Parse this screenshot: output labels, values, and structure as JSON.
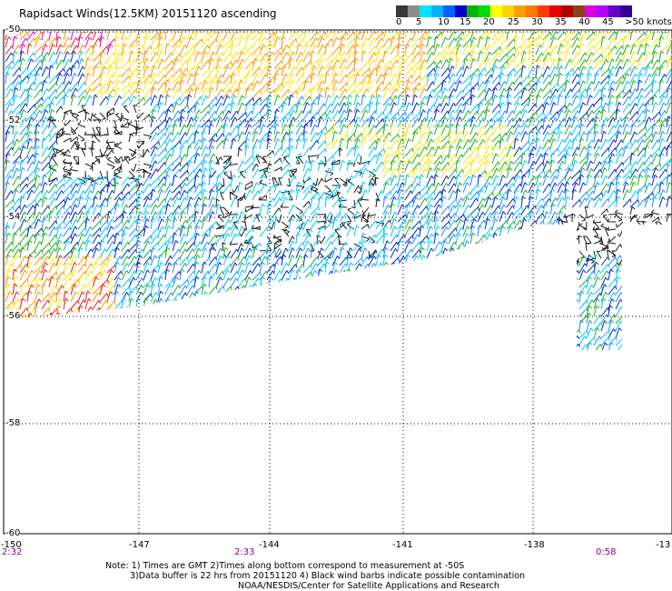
{
  "title": "Rapidsact Winds(12.5KM) 20151120 ascending",
  "legend": {
    "unit_label": ">50 knots",
    "ticks": [
      "0",
      "5",
      "10",
      "15",
      "20",
      "25",
      "30",
      "35",
      "40",
      "45"
    ],
    "swatches": [
      {
        "name": "0-5",
        "colors": [
          "#3a3a3a",
          "#8c8c8c"
        ]
      },
      {
        "name": "5-10",
        "colors": [
          "#00e5ff",
          "#00b4ff"
        ]
      },
      {
        "name": "10-15",
        "colors": [
          "#0064ff",
          "#0000c8"
        ]
      },
      {
        "name": "15-20",
        "colors": [
          "#00b400",
          "#00dc00"
        ]
      },
      {
        "name": "20-25",
        "colors": [
          "#ffff00",
          "#ffd200"
        ]
      },
      {
        "name": "25-30",
        "colors": [
          "#ffa000",
          "#ff7800"
        ]
      },
      {
        "name": "30-35",
        "colors": [
          "#ff3c00",
          "#e60000"
        ]
      },
      {
        "name": "35-40",
        "colors": [
          "#b40000",
          "#8b4513"
        ]
      },
      {
        "name": "40-45",
        "colors": [
          "#dc00dc",
          "#b400ff"
        ]
      },
      {
        "name": ">50",
        "colors": [
          "#6400c8",
          "#320096"
        ]
      }
    ]
  },
  "axes": {
    "lat_labels": [
      "-50",
      "-52",
      "-54",
      "-56",
      "-58",
      "-60"
    ],
    "lon_labels": [
      "-150",
      "-147",
      "-144",
      "-141",
      "-138",
      "-13"
    ],
    "time_labels": [
      "2:32",
      "2:33",
      "0:58"
    ]
  },
  "notes": {
    "line1": "Note: 1) Times are GMT 2)Times along bottom correspond to measurement at -50S",
    "line2": "3)Data buffer is 22 hrs from 20151120 4) Black wind barbs indicate possible contamination",
    "line3": "NOAA/NESDIS/Center for Satellite Applications and Research"
  },
  "colors": {
    "black": "#1a1a1a",
    "cyan": "#00c8ff",
    "light_blue": "#1e90ff",
    "blue": "#0028d2",
    "green": "#1eb41e",
    "yellow": "#ffe600",
    "orange": "#ff9600",
    "red": "#e61e1e",
    "magenta": "#e600e6",
    "time_label": "#8b008b"
  }
}
